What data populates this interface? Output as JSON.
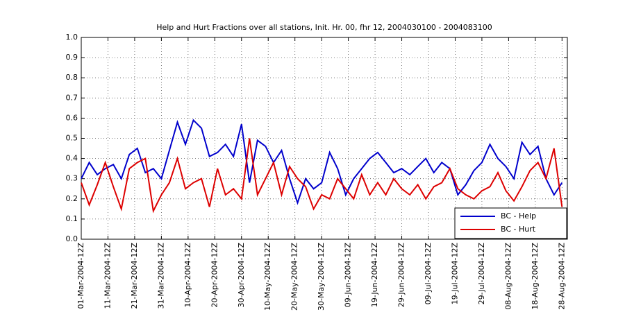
{
  "chart_data": {
    "type": "line",
    "title": "Help and Hurt Fractions over all stations, Init. Hr. 00, fhr 12, 2004030100 - 2004083100",
    "x": [
      "2004-03-01",
      "2004-03-04",
      "2004-03-07",
      "2004-03-10",
      "2004-03-13",
      "2004-03-16",
      "2004-03-19",
      "2004-03-22",
      "2004-03-25",
      "2004-03-28",
      "2004-03-31",
      "2004-04-03",
      "2004-04-06",
      "2004-04-09",
      "2004-04-12",
      "2004-04-15",
      "2004-04-18",
      "2004-04-21",
      "2004-04-24",
      "2004-04-27",
      "2004-04-30",
      "2004-05-03",
      "2004-05-06",
      "2004-05-09",
      "2004-05-12",
      "2004-05-15",
      "2004-05-18",
      "2004-05-21",
      "2004-05-24",
      "2004-05-27",
      "2004-05-30",
      "2004-06-02",
      "2004-06-05",
      "2004-06-08",
      "2004-06-11",
      "2004-06-14",
      "2004-06-17",
      "2004-06-20",
      "2004-06-23",
      "2004-06-26",
      "2004-06-29",
      "2004-07-02",
      "2004-07-05",
      "2004-07-08",
      "2004-07-11",
      "2004-07-14",
      "2004-07-17",
      "2004-07-20",
      "2004-07-23",
      "2004-07-26",
      "2004-07-29",
      "2004-08-01",
      "2004-08-04",
      "2004-08-07",
      "2004-08-10",
      "2004-08-13",
      "2004-08-16",
      "2004-08-19",
      "2004-08-22",
      "2004-08-25",
      "2004-08-28"
    ],
    "series": [
      {
        "name": "BC - Help",
        "color": "#0000cc",
        "values": [
          0.3,
          0.38,
          0.32,
          0.35,
          0.37,
          0.3,
          0.42,
          0.45,
          0.33,
          0.35,
          0.3,
          0.44,
          0.58,
          0.47,
          0.59,
          0.55,
          0.41,
          0.43,
          0.47,
          0.41,
          0.57,
          0.28,
          0.49,
          0.46,
          0.38,
          0.44,
          0.3,
          0.18,
          0.3,
          0.25,
          0.28,
          0.43,
          0.35,
          0.22,
          0.3,
          0.35,
          0.4,
          0.43,
          0.38,
          0.33,
          0.35,
          0.32,
          0.36,
          0.4,
          0.33,
          0.38,
          0.35,
          0.22,
          0.27,
          0.34,
          0.38,
          0.47,
          0.4,
          0.36,
          0.3,
          0.48,
          0.42,
          0.46,
          0.3,
          0.22,
          0.28
        ]
      },
      {
        "name": "BC - Hurt",
        "color": "#dd0000",
        "values": [
          0.28,
          0.17,
          0.27,
          0.38,
          0.26,
          0.15,
          0.35,
          0.38,
          0.4,
          0.14,
          0.22,
          0.28,
          0.4,
          0.25,
          0.28,
          0.3,
          0.16,
          0.35,
          0.22,
          0.25,
          0.2,
          0.5,
          0.22,
          0.3,
          0.38,
          0.22,
          0.36,
          0.3,
          0.26,
          0.15,
          0.22,
          0.2,
          0.3,
          0.25,
          0.2,
          0.32,
          0.22,
          0.28,
          0.22,
          0.3,
          0.25,
          0.22,
          0.27,
          0.2,
          0.26,
          0.28,
          0.35,
          0.25,
          0.22,
          0.2,
          0.24,
          0.26,
          0.33,
          0.24,
          0.19,
          0.26,
          0.34,
          0.38,
          0.3,
          0.45,
          0.16
        ]
      }
    ],
    "xlim": [
      "2004-03-01",
      "2004-08-30"
    ],
    "xticks": [
      {
        "value": "2004-03-01",
        "label": "01-Mar-2004-12Z"
      },
      {
        "value": "2004-03-11",
        "label": "11-Mar-2004-12Z"
      },
      {
        "value": "2004-03-21",
        "label": "21-Mar-2004-12Z"
      },
      {
        "value": "2004-03-31",
        "label": "31-Mar-2004-12Z"
      },
      {
        "value": "2004-04-10",
        "label": "10-Apr-2004-12Z"
      },
      {
        "value": "2004-04-20",
        "label": "20-Apr-2004-12Z"
      },
      {
        "value": "2004-04-30",
        "label": "30-Apr-2004-12Z"
      },
      {
        "value": "2004-05-10",
        "label": "10-May-2004-12Z"
      },
      {
        "value": "2004-05-20",
        "label": "20-May-2004-12Z"
      },
      {
        "value": "2004-05-30",
        "label": "30-May-2004-12Z"
      },
      {
        "value": "2004-06-09",
        "label": "09-Jun-2004-12Z"
      },
      {
        "value": "2004-06-19",
        "label": "19-Jun-2004-12Z"
      },
      {
        "value": "2004-06-29",
        "label": "29-Jun-2004-12Z"
      },
      {
        "value": "2004-07-09",
        "label": "09-Jul-2004-12Z"
      },
      {
        "value": "2004-07-19",
        "label": "19-Jul-2004-12Z"
      },
      {
        "value": "2004-07-29",
        "label": "29-Jul-2004-12Z"
      },
      {
        "value": "2004-08-08",
        "label": "08-Aug-2004-12Z"
      },
      {
        "value": "2004-08-18",
        "label": "18-Aug-2004-12Z"
      },
      {
        "value": "2004-08-28",
        "label": "28-Aug-2004-12Z"
      }
    ],
    "ylim": [
      0,
      1
    ],
    "yticks": [
      {
        "value": 0,
        "label": "0.0"
      },
      0.1,
      0.2,
      0.3,
      0.4,
      0.5,
      0.6,
      0.7,
      0.8,
      0.9,
      {
        "value": 1,
        "label": "1.0"
      }
    ],
    "grid": true,
    "legend": "lower right"
  }
}
